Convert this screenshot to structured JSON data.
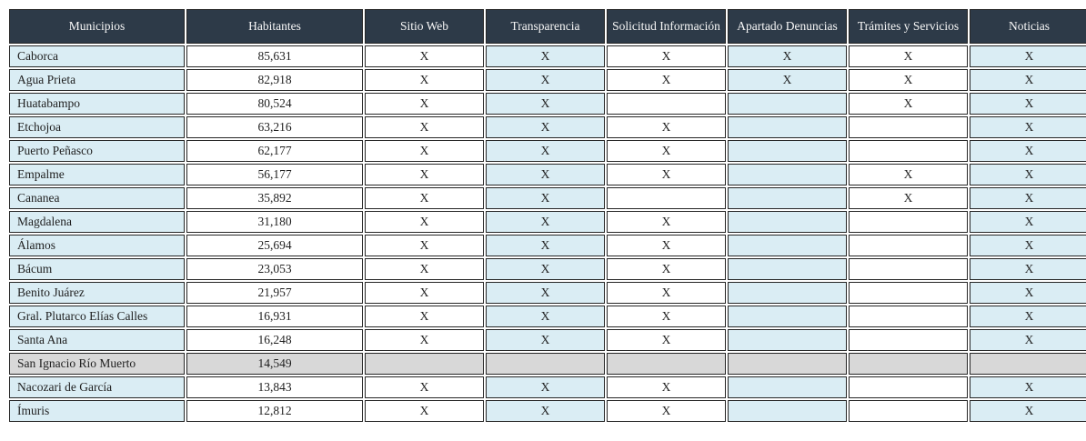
{
  "colors": {
    "header_bg": "#2d3a48",
    "header_text": "#f7f7f7",
    "column_blue": "#daedf4",
    "highlight_gray": "#d8d8d8",
    "cell_white": "#ffffff",
    "border": "#262626",
    "text": "#1f1f1f"
  },
  "chart_data": {
    "type": "table",
    "mark": "X",
    "columns": [
      "Municipios",
      "Habitantes",
      "Sitio Web",
      "Transparencia",
      "Solicitud Información",
      "Apartado Denuncias",
      "Trámites y Servicios",
      "Noticias"
    ],
    "column_keys": [
      "municipios",
      "habitantes",
      "sitio_web",
      "transparencia",
      "solicitud_informacion",
      "apartado_denuncias",
      "tramites_servicios",
      "noticias"
    ],
    "rows": [
      {
        "municipio": "Caborca",
        "habitantes": "85,631",
        "sitio_web": true,
        "transparencia": true,
        "solicitud_informacion": true,
        "apartado_denuncias": true,
        "tramites_servicios": true,
        "noticias": true,
        "highlighted": false
      },
      {
        "municipio": "Agua Prieta",
        "habitantes": "82,918",
        "sitio_web": true,
        "transparencia": true,
        "solicitud_informacion": true,
        "apartado_denuncias": true,
        "tramites_servicios": true,
        "noticias": true,
        "highlighted": false
      },
      {
        "municipio": "Huatabampo",
        "habitantes": "80,524",
        "sitio_web": true,
        "transparencia": true,
        "solicitud_informacion": false,
        "apartado_denuncias": false,
        "tramites_servicios": true,
        "noticias": true,
        "highlighted": false
      },
      {
        "municipio": "Etchojoa",
        "habitantes": "63,216",
        "sitio_web": true,
        "transparencia": true,
        "solicitud_informacion": true,
        "apartado_denuncias": false,
        "tramites_servicios": false,
        "noticias": true,
        "highlighted": false
      },
      {
        "municipio": "Puerto Peñasco",
        "habitantes": "62,177",
        "sitio_web": true,
        "transparencia": true,
        "solicitud_informacion": true,
        "apartado_denuncias": false,
        "tramites_servicios": false,
        "noticias": true,
        "highlighted": false
      },
      {
        "municipio": "Empalme",
        "habitantes": "56,177",
        "sitio_web": true,
        "transparencia": true,
        "solicitud_informacion": true,
        "apartado_denuncias": false,
        "tramites_servicios": true,
        "noticias": true,
        "highlighted": false
      },
      {
        "municipio": "Cananea",
        "habitantes": "35,892",
        "sitio_web": true,
        "transparencia": true,
        "solicitud_informacion": false,
        "apartado_denuncias": false,
        "tramites_servicios": true,
        "noticias": true,
        "highlighted": false
      },
      {
        "municipio": "Magdalena",
        "habitantes": "31,180",
        "sitio_web": true,
        "transparencia": true,
        "solicitud_informacion": true,
        "apartado_denuncias": false,
        "tramites_servicios": false,
        "noticias": true,
        "highlighted": false
      },
      {
        "municipio": "Álamos",
        "habitantes": "25,694",
        "sitio_web": true,
        "transparencia": true,
        "solicitud_informacion": true,
        "apartado_denuncias": false,
        "tramites_servicios": false,
        "noticias": true,
        "highlighted": false
      },
      {
        "municipio": "Bácum",
        "habitantes": "23,053",
        "sitio_web": true,
        "transparencia": true,
        "solicitud_informacion": true,
        "apartado_denuncias": false,
        "tramites_servicios": false,
        "noticias": true,
        "highlighted": false
      },
      {
        "municipio": "Benito Juárez",
        "habitantes": "21,957",
        "sitio_web": true,
        "transparencia": true,
        "solicitud_informacion": true,
        "apartado_denuncias": false,
        "tramites_servicios": false,
        "noticias": true,
        "highlighted": false
      },
      {
        "municipio": "Gral. Plutarco Elías Calles",
        "habitantes": "16,931",
        "sitio_web": true,
        "transparencia": true,
        "solicitud_informacion": true,
        "apartado_denuncias": false,
        "tramites_servicios": false,
        "noticias": true,
        "highlighted": false
      },
      {
        "municipio": "Santa Ana",
        "habitantes": "16,248",
        "sitio_web": true,
        "transparencia": true,
        "solicitud_informacion": true,
        "apartado_denuncias": false,
        "tramites_servicios": false,
        "noticias": true,
        "highlighted": false
      },
      {
        "municipio": "San Ignacio Río Muerto",
        "habitantes": "14,549",
        "sitio_web": false,
        "transparencia": false,
        "solicitud_informacion": false,
        "apartado_denuncias": false,
        "tramites_servicios": false,
        "noticias": false,
        "highlighted": true
      },
      {
        "municipio": "Nacozari de García",
        "habitantes": "13,843",
        "sitio_web": true,
        "transparencia": true,
        "solicitud_informacion": true,
        "apartado_denuncias": false,
        "tramites_servicios": false,
        "noticias": true,
        "highlighted": false
      },
      {
        "municipio": "Ímuris",
        "habitantes": "12,812",
        "sitio_web": true,
        "transparencia": true,
        "solicitud_informacion": true,
        "apartado_denuncias": false,
        "tramites_servicios": false,
        "noticias": true,
        "highlighted": false
      }
    ]
  }
}
